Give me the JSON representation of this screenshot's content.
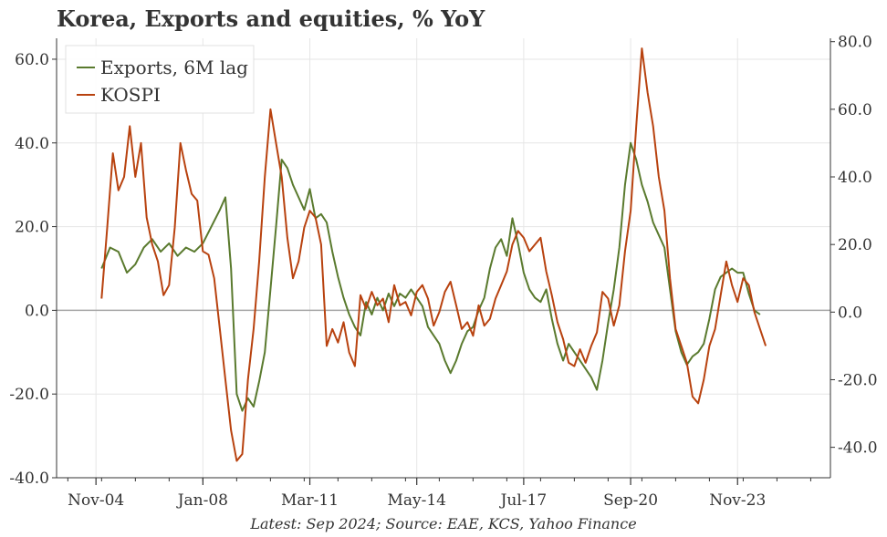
{
  "chart_data": {
    "type": "line",
    "title": "Korea, Exports and equities, % YoY",
    "source": "Latest: Sep 2024; Source: EAE, KCS, Yahoo Finance",
    "x_ticks": [
      "Nov-04",
      "Jan-08",
      "Mar-11",
      "May-14",
      "Jul-17",
      "Sep-20",
      "Nov-23"
    ],
    "x_tick_dates": [
      "2004-11",
      "2008-01",
      "2011-03",
      "2014-05",
      "2017-07",
      "2020-09",
      "2023-11"
    ],
    "xlim": [
      "2003-09",
      "2026-08"
    ],
    "y_left": {
      "ticks": [
        "-40.0",
        "-20.0",
        "0.0",
        "20.0",
        "40.0",
        "60.0"
      ],
      "lim": [
        -40,
        65
      ]
    },
    "y_right": {
      "ticks": [
        "-40.0",
        "-20.0",
        "0.0",
        "20.0",
        "40.0",
        "60.0",
        "80.0"
      ],
      "lim": [
        -49,
        81
      ]
    },
    "zero_line": true,
    "grid": true,
    "legend": {
      "position": "top-left",
      "entries": [
        "Exports, 6M lag",
        "KOSPI"
      ]
    },
    "series": [
      {
        "name": "Exports, 6M lag",
        "axis": "left",
        "color": "#5a7a2e",
        "points": [
          [
            "2005-01",
            10
          ],
          [
            "2005-04",
            15
          ],
          [
            "2005-07",
            14
          ],
          [
            "2005-10",
            9
          ],
          [
            "2006-01",
            11
          ],
          [
            "2006-04",
            15
          ],
          [
            "2006-07",
            17
          ],
          [
            "2006-10",
            14
          ],
          [
            "2007-01",
            16
          ],
          [
            "2007-04",
            13
          ],
          [
            "2007-07",
            15
          ],
          [
            "2007-10",
            14
          ],
          [
            "2008-01",
            16
          ],
          [
            "2008-04",
            20
          ],
          [
            "2008-07",
            24
          ],
          [
            "2008-09",
            27
          ],
          [
            "2008-11",
            10
          ],
          [
            "2009-01",
            -20
          ],
          [
            "2009-03",
            -24
          ],
          [
            "2009-05",
            -21
          ],
          [
            "2009-07",
            -23
          ],
          [
            "2009-09",
            -17
          ],
          [
            "2009-11",
            -10
          ],
          [
            "2010-01",
            5
          ],
          [
            "2010-03",
            20
          ],
          [
            "2010-05",
            36
          ],
          [
            "2010-07",
            34
          ],
          [
            "2010-09",
            30
          ],
          [
            "2010-11",
            27
          ],
          [
            "2011-01",
            24
          ],
          [
            "2011-03",
            29
          ],
          [
            "2011-05",
            22
          ],
          [
            "2011-07",
            23
          ],
          [
            "2011-09",
            21
          ],
          [
            "2011-11",
            14
          ],
          [
            "2012-01",
            8
          ],
          [
            "2012-03",
            3
          ],
          [
            "2012-05",
            -1
          ],
          [
            "2012-07",
            -4
          ],
          [
            "2012-09",
            -6
          ],
          [
            "2012-11",
            2
          ],
          [
            "2013-01",
            -1
          ],
          [
            "2013-03",
            3
          ],
          [
            "2013-05",
            0
          ],
          [
            "2013-07",
            4
          ],
          [
            "2013-09",
            1
          ],
          [
            "2013-11",
            4
          ],
          [
            "2014-01",
            3
          ],
          [
            "2014-03",
            5
          ],
          [
            "2014-05",
            3
          ],
          [
            "2014-07",
            1
          ],
          [
            "2014-09",
            -4
          ],
          [
            "2014-11",
            -6
          ],
          [
            "2015-01",
            -8
          ],
          [
            "2015-03",
            -12
          ],
          [
            "2015-05",
            -15
          ],
          [
            "2015-07",
            -12
          ],
          [
            "2015-09",
            -8
          ],
          [
            "2015-11",
            -5
          ],
          [
            "2016-01",
            -4
          ],
          [
            "2016-03",
            0
          ],
          [
            "2016-05",
            3
          ],
          [
            "2016-07",
            10
          ],
          [
            "2016-09",
            15
          ],
          [
            "2016-11",
            17
          ],
          [
            "2017-01",
            13
          ],
          [
            "2017-03",
            22
          ],
          [
            "2017-05",
            16
          ],
          [
            "2017-07",
            9
          ],
          [
            "2017-09",
            5
          ],
          [
            "2017-11",
            3
          ],
          [
            "2018-01",
            2
          ],
          [
            "2018-03",
            5
          ],
          [
            "2018-05",
            -2
          ],
          [
            "2018-07",
            -8
          ],
          [
            "2018-09",
            -12
          ],
          [
            "2018-11",
            -8
          ],
          [
            "2019-01",
            -10
          ],
          [
            "2019-03",
            -12
          ],
          [
            "2019-05",
            -14
          ],
          [
            "2019-07",
            -16
          ],
          [
            "2019-09",
            -19
          ],
          [
            "2019-11",
            -12
          ],
          [
            "2020-01",
            -3
          ],
          [
            "2020-03",
            5
          ],
          [
            "2020-05",
            15
          ],
          [
            "2020-07",
            30
          ],
          [
            "2020-09",
            40
          ],
          [
            "2020-11",
            36
          ],
          [
            "2021-01",
            30
          ],
          [
            "2021-03",
            26
          ],
          [
            "2021-05",
            21
          ],
          [
            "2021-07",
            18
          ],
          [
            "2021-09",
            15
          ],
          [
            "2021-11",
            5
          ],
          [
            "2022-01",
            -5
          ],
          [
            "2022-03",
            -10
          ],
          [
            "2022-05",
            -13
          ],
          [
            "2022-07",
            -11
          ],
          [
            "2022-09",
            -10
          ],
          [
            "2022-11",
            -8
          ],
          [
            "2023-01",
            -2
          ],
          [
            "2023-03",
            5
          ],
          [
            "2023-05",
            8
          ],
          [
            "2023-07",
            9
          ],
          [
            "2023-09",
            10
          ],
          [
            "2023-11",
            9
          ],
          [
            "2024-01",
            9
          ],
          [
            "2024-03",
            4
          ],
          [
            "2024-05",
            0
          ],
          [
            "2024-07",
            -1
          ]
        ]
      },
      {
        "name": "KOSPI",
        "axis": "right",
        "color": "#b8420f",
        "points": [
          [
            "2005-01",
            4
          ],
          [
            "2005-03",
            25
          ],
          [
            "2005-05",
            47
          ],
          [
            "2005-07",
            36
          ],
          [
            "2005-09",
            40
          ],
          [
            "2005-11",
            55
          ],
          [
            "2006-01",
            40
          ],
          [
            "2006-03",
            50
          ],
          [
            "2006-05",
            28
          ],
          [
            "2006-07",
            20
          ],
          [
            "2006-09",
            15
          ],
          [
            "2006-11",
            5
          ],
          [
            "2007-01",
            8
          ],
          [
            "2007-03",
            25
          ],
          [
            "2007-05",
            50
          ],
          [
            "2007-07",
            42
          ],
          [
            "2007-09",
            35
          ],
          [
            "2007-11",
            33
          ],
          [
            "2008-01",
            18
          ],
          [
            "2008-03",
            17
          ],
          [
            "2008-05",
            10
          ],
          [
            "2008-07",
            -5
          ],
          [
            "2008-09",
            -20
          ],
          [
            "2008-11",
            -35
          ],
          [
            "2009-01",
            -44
          ],
          [
            "2009-03",
            -42
          ],
          [
            "2009-05",
            -20
          ],
          [
            "2009-07",
            -5
          ],
          [
            "2009-09",
            15
          ],
          [
            "2009-11",
            40
          ],
          [
            "2010-01",
            60
          ],
          [
            "2010-03",
            50
          ],
          [
            "2010-05",
            40
          ],
          [
            "2010-07",
            22
          ],
          [
            "2010-09",
            10
          ],
          [
            "2010-11",
            15
          ],
          [
            "2011-01",
            25
          ],
          [
            "2011-03",
            30
          ],
          [
            "2011-05",
            28
          ],
          [
            "2011-07",
            20
          ],
          [
            "2011-09",
            -10
          ],
          [
            "2011-11",
            -5
          ],
          [
            "2012-01",
            -9
          ],
          [
            "2012-03",
            -3
          ],
          [
            "2012-05",
            -12
          ],
          [
            "2012-07",
            -16
          ],
          [
            "2012-09",
            5
          ],
          [
            "2012-11",
            1
          ],
          [
            "2013-01",
            6
          ],
          [
            "2013-03",
            2
          ],
          [
            "2013-05",
            4
          ],
          [
            "2013-07",
            -3
          ],
          [
            "2013-09",
            8
          ],
          [
            "2013-11",
            2
          ],
          [
            "2014-01",
            3
          ],
          [
            "2014-03",
            -1
          ],
          [
            "2014-05",
            6
          ],
          [
            "2014-07",
            8
          ],
          [
            "2014-09",
            4
          ],
          [
            "2014-11",
            -4
          ],
          [
            "2015-01",
            0
          ],
          [
            "2015-03",
            6
          ],
          [
            "2015-05",
            9
          ],
          [
            "2015-07",
            2
          ],
          [
            "2015-09",
            -5
          ],
          [
            "2015-11",
            -3
          ],
          [
            "2016-01",
            -7
          ],
          [
            "2016-03",
            2
          ],
          [
            "2016-05",
            -4
          ],
          [
            "2016-07",
            -2
          ],
          [
            "2016-09",
            4
          ],
          [
            "2016-11",
            8
          ],
          [
            "2017-01",
            12
          ],
          [
            "2017-03",
            20
          ],
          [
            "2017-05",
            24
          ],
          [
            "2017-07",
            22
          ],
          [
            "2017-09",
            18
          ],
          [
            "2017-11",
            20
          ],
          [
            "2018-01",
            22
          ],
          [
            "2018-03",
            12
          ],
          [
            "2018-05",
            5
          ],
          [
            "2018-07",
            -3
          ],
          [
            "2018-09",
            -8
          ],
          [
            "2018-11",
            -15
          ],
          [
            "2019-01",
            -16
          ],
          [
            "2019-03",
            -11
          ],
          [
            "2019-05",
            -15
          ],
          [
            "2019-07",
            -10
          ],
          [
            "2019-09",
            -6
          ],
          [
            "2019-11",
            6
          ],
          [
            "2020-01",
            4
          ],
          [
            "2020-03",
            -4
          ],
          [
            "2020-05",
            2
          ],
          [
            "2020-07",
            18
          ],
          [
            "2020-09",
            30
          ],
          [
            "2020-11",
            55
          ],
          [
            "2021-01",
            78
          ],
          [
            "2021-03",
            65
          ],
          [
            "2021-05",
            55
          ],
          [
            "2021-07",
            40
          ],
          [
            "2021-09",
            30
          ],
          [
            "2021-11",
            10
          ],
          [
            "2022-01",
            -5
          ],
          [
            "2022-03",
            -10
          ],
          [
            "2022-05",
            -15
          ],
          [
            "2022-07",
            -25
          ],
          [
            "2022-09",
            -27
          ],
          [
            "2022-11",
            -20
          ],
          [
            "2023-01",
            -10
          ],
          [
            "2023-03",
            -5
          ],
          [
            "2023-05",
            5
          ],
          [
            "2023-07",
            15
          ],
          [
            "2023-09",
            8
          ],
          [
            "2023-11",
            3
          ],
          [
            "2024-01",
            10
          ],
          [
            "2024-03",
            8
          ],
          [
            "2024-05",
            0
          ],
          [
            "2024-07",
            -5
          ],
          [
            "2024-09",
            -10
          ]
        ]
      }
    ]
  }
}
